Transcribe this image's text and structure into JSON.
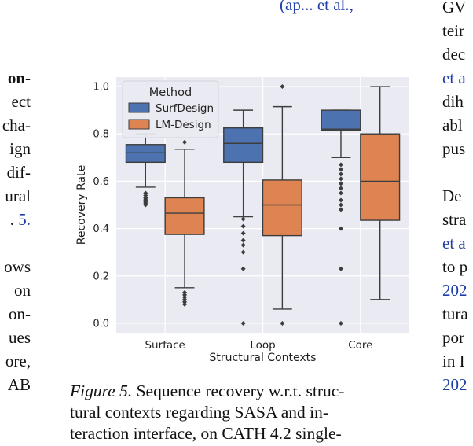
{
  "left_edge_lines": [
    {
      "text": "",
      "style": "blue"
    },
    {
      "text": "",
      "style": ""
    },
    {
      "text": "",
      "style": ""
    },
    {
      "text": "on-",
      "style": "bold"
    },
    {
      "text": "ect",
      "style": ""
    },
    {
      "text": "cha-",
      "style": ""
    },
    {
      "text": "ign",
      "style": ""
    },
    {
      "text": "dif-",
      "style": ""
    },
    {
      "text": "ural",
      "style": ""
    },
    {
      "text": ". 5.",
      "style": "blue-tail"
    },
    {
      "text": "",
      "style": ""
    },
    {
      "text": "ows",
      "style": ""
    },
    {
      "text": "on",
      "style": ""
    },
    {
      "text": "on-",
      "style": ""
    },
    {
      "text": "ues",
      "style": ""
    },
    {
      "text": "ore,",
      "style": ""
    },
    {
      "text": "AB",
      "style": ""
    }
  ],
  "top_fragment": "(ap... et al.,",
  "right_edge_lines": [
    {
      "text": "GV",
      "style": ""
    },
    {
      "text": "teir",
      "style": ""
    },
    {
      "text": "dec",
      "style": ""
    },
    {
      "text": "et a",
      "style": "blue"
    },
    {
      "text": "dih",
      "style": ""
    },
    {
      "text": "abl",
      "style": ""
    },
    {
      "text": "pus",
      "style": ""
    },
    {
      "text": "",
      "style": ""
    },
    {
      "text": "De",
      "style": ""
    },
    {
      "text": "stra",
      "style": ""
    },
    {
      "text": "et a",
      "style": "blue"
    },
    {
      "text": "to p",
      "style": ""
    },
    {
      "text": "202",
      "style": "blue"
    },
    {
      "text": "tura",
      "style": ""
    },
    {
      "text": "por",
      "style": ""
    },
    {
      "text": "in I",
      "style": ""
    },
    {
      "text": "202",
      "style": "blue"
    }
  ],
  "caption": {
    "label": "Figure 5.",
    "lines": [
      " Sequence recovery w.r.t. struc-",
      "tural contexts regarding SASA and in-",
      "teraction interface, on CATH 4.2 single-"
    ]
  },
  "colors": {
    "surfdesign": "#4c72b0",
    "lmdesign": "#dd8452",
    "plot_bg": "#eaeaf2",
    "grid": "#ffffff",
    "line": "#3d3d3d",
    "link": "#1f3fa8"
  },
  "chart_data": {
    "type": "box",
    "xlabel": "Structural Contexts",
    "ylabel": "Recovery Rate",
    "ylim": [
      -0.04,
      1.04
    ],
    "yticks": [
      0.0,
      0.2,
      0.4,
      0.6,
      0.8,
      1.0
    ],
    "ytick_labels": [
      "0.0",
      "0.2",
      "0.4",
      "0.6",
      "0.8",
      "1.0"
    ],
    "categories": [
      "Surface",
      "Loop",
      "Core"
    ],
    "grid": true,
    "legend": {
      "title": "Method",
      "placement": "top-left",
      "entries": [
        "SurfDesign",
        "LM-Design"
      ]
    },
    "series": [
      {
        "name": "SurfDesign",
        "color_key": "surfdesign",
        "boxes": [
          {
            "whislo": 0.575,
            "q1": 0.68,
            "med": 0.72,
            "q3": 0.755,
            "whishi": 0.8,
            "fliers": [
              0.55,
              0.54,
              0.53,
              0.525,
              0.52,
              0.515,
              0.51,
              0.505,
              0.5
            ]
          },
          {
            "whislo": 0.45,
            "q1": 0.68,
            "med": 0.76,
            "q3": 0.825,
            "whishi": 0.9,
            "fliers": [
              0.44,
              0.41,
              0.38,
              0.35,
              0.33,
              0.3,
              0.23,
              0.0
            ]
          },
          {
            "whislo": 0.7,
            "q1": 0.815,
            "med": 0.82,
            "q3": 0.9,
            "whishi": 0.9,
            "fliers": [
              0.67,
              0.65,
              0.63,
              0.61,
              0.59,
              0.57,
              0.55,
              0.52,
              0.5,
              0.48,
              0.4,
              0.23,
              0.0
            ]
          }
        ]
      },
      {
        "name": "LM-Design",
        "color_key": "lmdesign",
        "boxes": [
          {
            "whislo": 0.15,
            "q1": 0.375,
            "med": 0.465,
            "q3": 0.53,
            "whishi": 0.735,
            "fliers": [
              0.765,
              0.13,
              0.12,
              0.11,
              0.1,
              0.09,
              0.08
            ]
          },
          {
            "whislo": 0.06,
            "q1": 0.37,
            "med": 0.5,
            "q3": 0.605,
            "whishi": 0.915,
            "fliers": [
              1.0,
              0.0
            ]
          },
          {
            "whislo": 0.1,
            "q1": 0.435,
            "med": 0.6,
            "q3": 0.8,
            "whishi": 1.0,
            "fliers": []
          }
        ]
      }
    ]
  }
}
